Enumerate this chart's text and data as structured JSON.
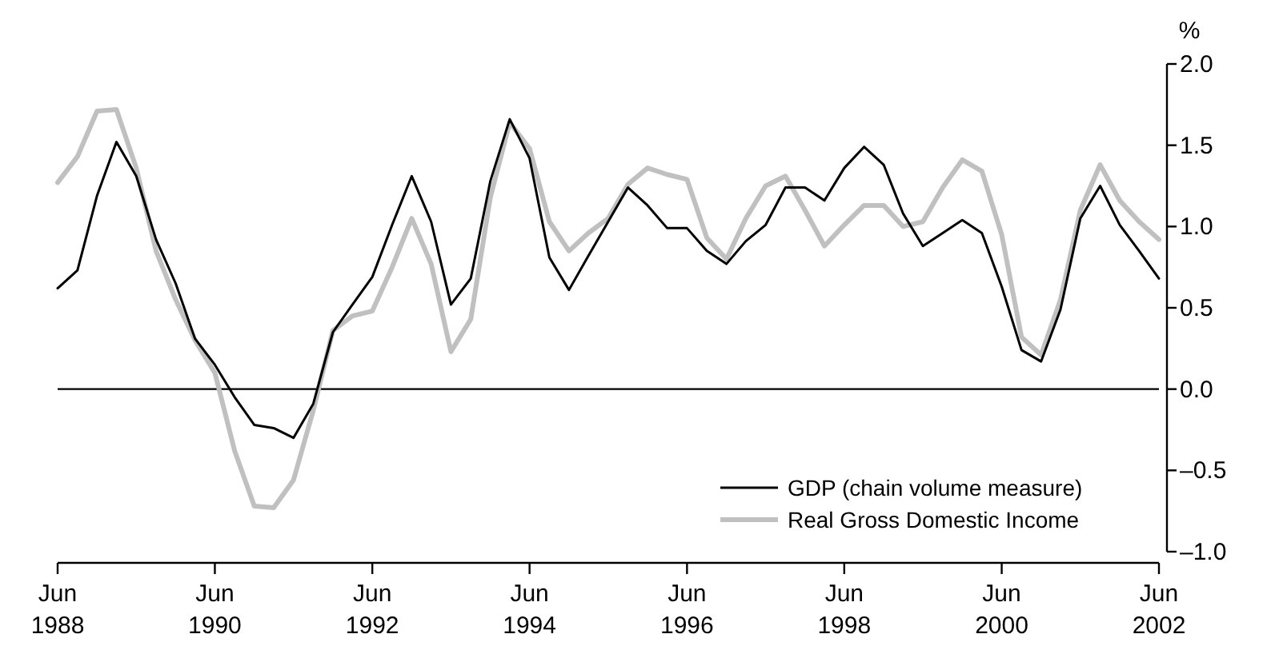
{
  "chart_data": {
    "type": "line",
    "ylabel": "%",
    "x": [
      "1988-06",
      "1988-09",
      "1988-12",
      "1989-03",
      "1989-06",
      "1989-09",
      "1989-12",
      "1990-03",
      "1990-06",
      "1990-09",
      "1990-12",
      "1991-03",
      "1991-06",
      "1991-09",
      "1991-12",
      "1992-03",
      "1992-06",
      "1992-09",
      "1992-12",
      "1993-03",
      "1993-06",
      "1993-09",
      "1993-12",
      "1994-03",
      "1994-06",
      "1994-09",
      "1994-12",
      "1995-03",
      "1995-06",
      "1995-09",
      "1995-12",
      "1996-03",
      "1996-06",
      "1996-09",
      "1996-12",
      "1997-03",
      "1997-06",
      "1997-09",
      "1997-12",
      "1998-03",
      "1998-06",
      "1998-09",
      "1998-12",
      "1999-03",
      "1999-06",
      "1999-09",
      "1999-12",
      "2000-03",
      "2000-06",
      "2000-09",
      "2000-12",
      "2001-03",
      "2001-06",
      "2001-09",
      "2001-12",
      "2002-03",
      "2002-06"
    ],
    "series": [
      {
        "name": "GDP (chain volume measure)",
        "color": "#000000",
        "values": [
          0.62,
          0.73,
          1.19,
          1.52,
          1.31,
          0.92,
          0.65,
          0.31,
          0.15,
          -0.05,
          -0.22,
          -0.24,
          -0.3,
          -0.09,
          0.35,
          0.52,
          0.69,
          1.01,
          1.31,
          1.03,
          0.52,
          0.68,
          1.28,
          1.66,
          1.42,
          0.81,
          0.61,
          0.82,
          1.03,
          1.24,
          1.13,
          0.99,
          0.99,
          0.85,
          0.77,
          0.91,
          1.01,
          1.24,
          1.24,
          1.16,
          1.36,
          1.49,
          1.38,
          1.08,
          0.88,
          0.96,
          1.04,
          0.96,
          0.63,
          0.24,
          0.17,
          0.49,
          1.05,
          1.25,
          1.01,
          0.85,
          0.68
        ]
      },
      {
        "name": "Real Gross Domestic Income",
        "color": "#c0c0c0",
        "values": [
          1.27,
          1.43,
          1.71,
          1.72,
          1.36,
          0.85,
          0.55,
          0.3,
          0.1,
          -0.38,
          -0.72,
          -0.73,
          -0.56,
          -0.13,
          0.36,
          0.45,
          0.48,
          0.75,
          1.05,
          0.77,
          0.23,
          0.43,
          1.18,
          1.64,
          1.48,
          1.03,
          0.85,
          0.96,
          1.05,
          1.26,
          1.36,
          1.32,
          1.29,
          0.93,
          0.8,
          1.05,
          1.25,
          1.31,
          1.1,
          0.88,
          1.01,
          1.13,
          1.13,
          1.0,
          1.03,
          1.24,
          1.41,
          1.34,
          0.95,
          0.32,
          0.21,
          0.55,
          1.1,
          1.38,
          1.16,
          1.03,
          0.92
        ]
      }
    ],
    "xlim": [
      "1988-06",
      "2002-06"
    ],
    "xticks": [
      {
        "value": "1988-06",
        "label": "Jun 1988"
      },
      {
        "value": "1990-06",
        "label": "Jun 1990"
      },
      {
        "value": "1992-06",
        "label": "Jun 1992"
      },
      {
        "value": "1994-06",
        "label": "Jun 1994"
      },
      {
        "value": "1996-06",
        "label": "Jun 1996"
      },
      {
        "value": "1998-06",
        "label": "Jun 1998"
      },
      {
        "value": "2000-06",
        "label": "Jun 2000"
      },
      {
        "value": "2002-06",
        "label": "Jun 2002"
      }
    ],
    "ylim": [
      -1.0,
      2.0
    ],
    "yticks": [
      {
        "value": -1.0,
        "label": "–1.0"
      },
      {
        "value": -0.5,
        "label": "–0.5"
      },
      {
        "value": 0,
        "label": "0.0"
      },
      {
        "value": 0.5,
        "label": "0.5"
      },
      {
        "value": 1.0,
        "label": "1.0"
      },
      {
        "value": 1.5,
        "label": "1.5"
      },
      {
        "value": 2.0,
        "label": "2.0"
      }
    ],
    "ref_lines": [
      {
        "axis": "y",
        "value": 0,
        "color": "#000000"
      }
    ],
    "grid": false,
    "legend": "bottom right",
    "line_style": "solid",
    "marker": "none"
  }
}
